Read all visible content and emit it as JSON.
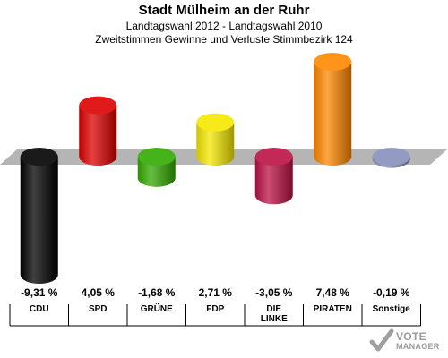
{
  "header": {
    "title": "Stadt Mülheim an der Ruhr",
    "subtitle1": "Landtagswahl 2012 - Landtagswahl 2010",
    "subtitle2": "Zweitstimmen Gewinne und Verluste Stimmbezirk 124"
  },
  "logo": {
    "line1": "VOTE",
    "line2": "MANAGER"
  },
  "chart_data": {
    "type": "bar",
    "title": "Stadt Mülheim an der Ruhr",
    "subtitle": "Landtagswahl 2012 - Landtagswahl 2010 / Zweitstimmen Gewinne und Verluste Stimmbezirk 124",
    "categories": [
      "CDU",
      "SPD",
      "GRÜNE",
      "FDP",
      "DIE LINKE",
      "PIRATEN",
      "Sonstige"
    ],
    "category_lines": [
      [
        "CDU"
      ],
      [
        "SPD"
      ],
      [
        "GRÜNE"
      ],
      [
        "FDP"
      ],
      [
        "DIE",
        "LINKE"
      ],
      [
        "PIRATEN"
      ],
      [
        "Sonstige"
      ]
    ],
    "values": [
      -9.31,
      4.05,
      -1.68,
      2.71,
      -3.05,
      7.48,
      -0.19
    ],
    "value_labels": [
      "-9,31 %",
      "4,05 %",
      "-1,68 %",
      "2,71 %",
      "-3,05 %",
      "7,48 %",
      "-0,19 %"
    ],
    "colors": [
      "#000000",
      "#dd0000",
      "#33aa00",
      "#f5e800",
      "#bb1144",
      "#ff8800",
      "#8890bb"
    ],
    "unit": "%",
    "baseline": 0
  }
}
